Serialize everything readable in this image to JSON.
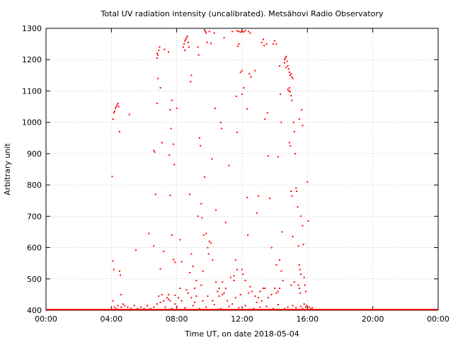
{
  "chart_data": {
    "type": "scatter",
    "title": "Total UV radiation intensity (uncalibrated). Metsähovi Radio Observatory",
    "xlabel": "Time UT, on date 2018-05-04",
    "ylabel": "Arbitrary unit",
    "xlim": [
      0,
      24
    ],
    "ylim": [
      400,
      1300
    ],
    "x_ticks": [
      0,
      4,
      8,
      12,
      16,
      20,
      24
    ],
    "x_tick_labels": [
      "00:00",
      "04:00",
      "08:00",
      "12:00",
      "16:00",
      "20:00",
      "00:00"
    ],
    "y_ticks": [
      400,
      500,
      600,
      700,
      800,
      900,
      1000,
      1100,
      1200,
      1300
    ],
    "y_tick_labels": [
      "400",
      "500",
      "600",
      "700",
      "800",
      "900",
      "1000",
      "1100",
      "1200",
      "1300"
    ],
    "grid": true,
    "marker_color": "#ff0000",
    "baseline": {
      "value": 400,
      "x_range": [
        0,
        24
      ],
      "note_visible": false
    },
    "series": [
      {
        "points": [
          [
            4.1,
            1010
          ],
          [
            4.15,
            1030
          ],
          [
            4.2,
            1035
          ],
          [
            4.25,
            1045
          ],
          [
            4.3,
            1050
          ],
          [
            4.35,
            1055
          ],
          [
            4.4,
            1060
          ],
          [
            4.45,
            1050
          ],
          [
            4.5,
            970
          ],
          [
            5.1,
            1025
          ],
          [
            4.05,
            827
          ],
          [
            4.1,
            557
          ],
          [
            4.15,
            530
          ],
          [
            4.5,
            525
          ],
          [
            4.55,
            512
          ],
          [
            4.6,
            450
          ],
          [
            4.1,
            430
          ],
          [
            5.5,
            592
          ],
          [
            6.3,
            645
          ],
          [
            6.6,
            910
          ],
          [
            6.65,
            905
          ],
          [
            6.7,
            770
          ],
          [
            6.6,
            605
          ],
          [
            6.8,
            1220
          ],
          [
            6.85,
            1215
          ],
          [
            6.9,
            1230
          ],
          [
            6.95,
            1240
          ],
          [
            6.8,
            1205
          ],
          [
            6.85,
            1140
          ],
          [
            7.0,
            1110
          ],
          [
            6.8,
            1060
          ],
          [
            7.1,
            935
          ],
          [
            7.2,
            588
          ],
          [
            7.0,
            532
          ],
          [
            7.25,
            1233
          ],
          [
            7.5,
            1225
          ],
          [
            7.6,
            1040
          ],
          [
            7.65,
            980
          ],
          [
            7.7,
            1070
          ],
          [
            7.55,
            895
          ],
          [
            7.8,
            930
          ],
          [
            7.85,
            865
          ],
          [
            7.6,
            767
          ],
          [
            7.7,
            640
          ],
          [
            7.8,
            562
          ],
          [
            7.9,
            553
          ],
          [
            7.5,
            450
          ],
          [
            7.9,
            448
          ],
          [
            8.0,
            1045
          ],
          [
            8.2,
            625
          ],
          [
            8.3,
            555
          ],
          [
            8.4,
            1240
          ],
          [
            8.45,
            1250
          ],
          [
            8.5,
            1260
          ],
          [
            8.55,
            1265
          ],
          [
            8.6,
            1270
          ],
          [
            8.65,
            1275
          ],
          [
            8.7,
            1255
          ],
          [
            8.75,
            1240
          ],
          [
            8.5,
            1230
          ],
          [
            8.9,
            1150
          ],
          [
            8.85,
            1130
          ],
          [
            8.8,
            770
          ],
          [
            8.9,
            580
          ],
          [
            9.0,
            540
          ],
          [
            9.1,
            470
          ],
          [
            9.3,
            1240
          ],
          [
            9.35,
            1215
          ],
          [
            9.4,
            950
          ],
          [
            9.45,
            925
          ],
          [
            9.3,
            700
          ],
          [
            9.5,
            740
          ],
          [
            9.55,
            695
          ],
          [
            9.6,
            525
          ],
          [
            9.7,
            1295
          ],
          [
            9.75,
            1290
          ],
          [
            9.8,
            1285
          ],
          [
            9.85,
            1255
          ],
          [
            9.7,
            825
          ],
          [
            9.65,
            640
          ],
          [
            9.8,
            645
          ],
          [
            9.9,
            600
          ],
          [
            9.95,
            580
          ],
          [
            10.0,
            1290
          ],
          [
            10.1,
            1252
          ],
          [
            10.15,
            883
          ],
          [
            10.0,
            620
          ],
          [
            10.1,
            615
          ],
          [
            10.2,
            560
          ],
          [
            10.3,
            1285
          ],
          [
            10.35,
            1045
          ],
          [
            10.4,
            720
          ],
          [
            10.5,
            460
          ],
          [
            10.7,
            1000
          ],
          [
            10.75,
            980
          ],
          [
            10.9,
            1270
          ],
          [
            11.0,
            680
          ],
          [
            10.6,
            470
          ],
          [
            10.8,
            450
          ],
          [
            11.3,
            505
          ],
          [
            11.2,
            862
          ],
          [
            11.6,
            560
          ],
          [
            11.7,
            530
          ],
          [
            11.5,
            495
          ],
          [
            11.4,
            1290
          ],
          [
            11.7,
            1292
          ],
          [
            11.8,
            1290
          ],
          [
            11.9,
            1288
          ],
          [
            12.0,
            1291
          ],
          [
            12.1,
            1289
          ],
          [
            12.2,
            1293
          ],
          [
            11.75,
            1243
          ],
          [
            11.8,
            1250
          ],
          [
            11.65,
            1083
          ],
          [
            11.7,
            968
          ],
          [
            11.9,
            1160
          ],
          [
            12.0,
            1165
          ],
          [
            12.1,
            1110
          ],
          [
            12.0,
            1090
          ],
          [
            12.3,
            1043
          ],
          [
            12.4,
            1290
          ],
          [
            12.5,
            1285
          ],
          [
            12.45,
            1155
          ],
          [
            12.55,
            1145
          ],
          [
            12.3,
            760
          ],
          [
            12.35,
            640
          ],
          [
            12.0,
            530
          ],
          [
            12.05,
            515
          ],
          [
            12.8,
            1165
          ],
          [
            12.9,
            710
          ],
          [
            13.0,
            765
          ],
          [
            13.1,
            460
          ],
          [
            13.2,
            1255
          ],
          [
            13.3,
            1265
          ],
          [
            13.35,
            1245
          ],
          [
            13.5,
            1250
          ],
          [
            13.55,
            1030
          ],
          [
            13.4,
            1010
          ],
          [
            13.6,
            893
          ],
          [
            13.7,
            757
          ],
          [
            13.8,
            600
          ],
          [
            13.9,
            1250
          ],
          [
            14.0,
            1260
          ],
          [
            14.1,
            1250
          ],
          [
            14.2,
            890
          ],
          [
            14.3,
            1180
          ],
          [
            14.35,
            1090
          ],
          [
            14.4,
            1000
          ],
          [
            14.45,
            650
          ],
          [
            14.3,
            560
          ],
          [
            14.4,
            525
          ],
          [
            14.5,
            495
          ],
          [
            14.6,
            1200
          ],
          [
            14.65,
            1205
          ],
          [
            14.7,
            1210
          ],
          [
            14.75,
            1195
          ],
          [
            14.8,
            1180
          ],
          [
            14.85,
            1170
          ],
          [
            14.9,
            1160
          ],
          [
            14.95,
            1150
          ],
          [
            15.0,
            1155
          ],
          [
            15.05,
            1145
          ],
          [
            15.1,
            1140
          ],
          [
            14.6,
            1190
          ],
          [
            14.7,
            1175
          ],
          [
            14.8,
            1105
          ],
          [
            14.85,
            1100
          ],
          [
            14.9,
            1110
          ],
          [
            14.95,
            1098
          ],
          [
            15.0,
            1085
          ],
          [
            15.05,
            1070
          ],
          [
            14.9,
            935
          ],
          [
            14.95,
            925
          ],
          [
            15.0,
            780
          ],
          [
            15.05,
            765
          ],
          [
            15.1,
            635
          ],
          [
            15.15,
            1000
          ],
          [
            15.2,
            970
          ],
          [
            15.25,
            900
          ],
          [
            15.3,
            790
          ],
          [
            15.35,
            780
          ],
          [
            15.4,
            730
          ],
          [
            15.45,
            605
          ],
          [
            15.5,
            545
          ],
          [
            15.55,
            530
          ],
          [
            15.6,
            515
          ],
          [
            15.65,
            1040
          ],
          [
            15.7,
            990
          ],
          [
            15.5,
            1010
          ],
          [
            15.6,
            700
          ],
          [
            15.7,
            670
          ],
          [
            15.75,
            610
          ],
          [
            15.8,
            505
          ],
          [
            15.85,
            480
          ],
          [
            15.9,
            460
          ],
          [
            16.0,
            810
          ],
          [
            16.05,
            685
          ],
          [
            15.45,
            480
          ],
          [
            15.5,
            470
          ],
          [
            15.55,
            455
          ],
          [
            14.3,
            470
          ],
          [
            14.2,
            460
          ],
          [
            14.1,
            455
          ],
          [
            13.8,
            450
          ],
          [
            13.6,
            440
          ],
          [
            13.2,
            430
          ],
          [
            12.8,
            445
          ],
          [
            12.6,
            460
          ],
          [
            12.4,
            455
          ],
          [
            11.9,
            450
          ],
          [
            11.6,
            440
          ],
          [
            11.1,
            430
          ],
          [
            10.9,
            455
          ],
          [
            10.6,
            445
          ],
          [
            10.2,
            430
          ],
          [
            9.9,
            445
          ],
          [
            9.6,
            430
          ],
          [
            9.2,
            445
          ],
          [
            8.9,
            440
          ],
          [
            8.7,
            455
          ],
          [
            8.3,
            430
          ],
          [
            8.1,
            440
          ],
          [
            7.9,
            420
          ],
          [
            7.6,
            430
          ],
          [
            7.4,
            440
          ],
          [
            7.2,
            430
          ],
          [
            7.0,
            425
          ],
          [
            6.8,
            420
          ],
          [
            6.6,
            410
          ],
          [
            6.4,
            405
          ],
          [
            6.2,
            415
          ],
          [
            6.0,
            405
          ],
          [
            5.8,
            410
          ],
          [
            5.6,
            405
          ],
          [
            5.4,
            415
          ],
          [
            5.2,
            405
          ],
          [
            5.0,
            410
          ],
          [
            4.8,
            415
          ],
          [
            4.7,
            420
          ],
          [
            4.6,
            410
          ],
          [
            4.4,
            415
          ],
          [
            4.3,
            405
          ],
          [
            4.2,
            410
          ],
          [
            16.1,
            410
          ],
          [
            16.2,
            405
          ],
          [
            16.3,
            408
          ],
          [
            15.95,
            415
          ],
          [
            15.8,
            420
          ],
          [
            7.3,
            410
          ],
          [
            7.7,
            405
          ],
          [
            8.0,
            412
          ],
          [
            8.5,
            408
          ],
          [
            9.0,
            415
          ],
          [
            9.4,
            405
          ],
          [
            9.8,
            410
          ],
          [
            10.3,
            418
          ],
          [
            10.7,
            405
          ],
          [
            11.2,
            412
          ],
          [
            11.8,
            408
          ],
          [
            12.2,
            415
          ],
          [
            12.7,
            405
          ],
          [
            13.1,
            410
          ],
          [
            13.5,
            412
          ],
          [
            13.9,
            405
          ],
          [
            14.2,
            418
          ],
          [
            14.6,
            405
          ],
          [
            14.8,
            410
          ],
          [
            15.1,
            415
          ],
          [
            15.3,
            408
          ],
          [
            15.6,
            412
          ],
          [
            15.7,
            405
          ],
          [
            15.9,
            410
          ],
          [
            8.6,
            465
          ],
          [
            9.5,
            480
          ],
          [
            10.4,
            490
          ],
          [
            11.0,
            470
          ],
          [
            12.5,
            475
          ],
          [
            13.3,
            470
          ],
          [
            14.0,
            470
          ],
          [
            15.2,
            490
          ],
          [
            13.0,
            440
          ],
          [
            12.9,
            425
          ],
          [
            11.4,
            420
          ],
          [
            9.1,
            425
          ],
          [
            7.1,
            450
          ],
          [
            6.9,
            445
          ],
          [
            7.5,
            435
          ],
          [
            8.2,
            470
          ],
          [
            8.8,
            520
          ],
          [
            9.2,
            495
          ],
          [
            10.8,
            490
          ],
          [
            11.5,
            510
          ],
          [
            12.2,
            495
          ],
          [
            13.4,
            470
          ],
          [
            14.1,
            545
          ],
          [
            15.0,
            480
          ]
        ]
      }
    ]
  }
}
